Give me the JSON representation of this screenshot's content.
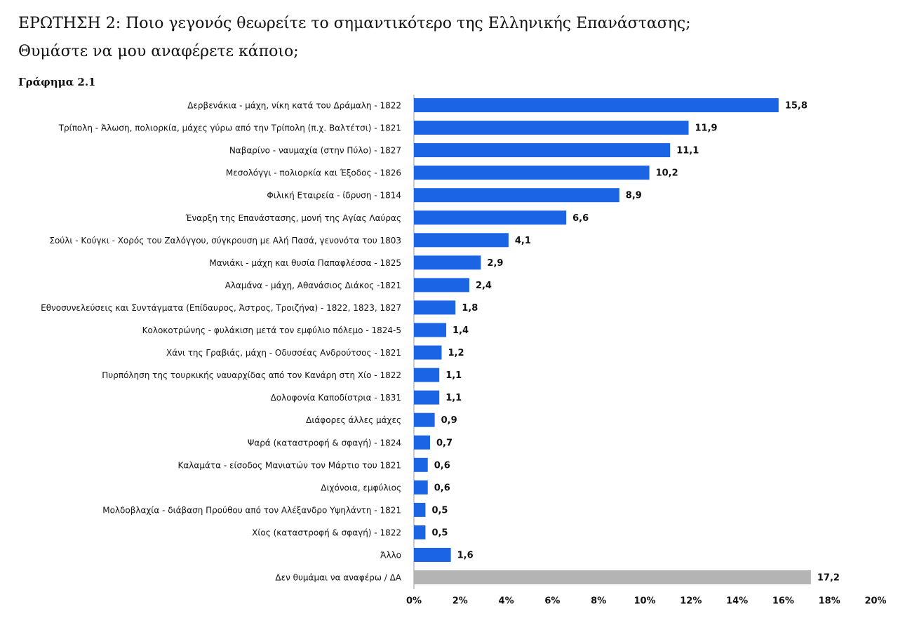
{
  "chart_data": {
    "type": "bar",
    "orientation": "horizontal",
    "title": [
      "ΕΡΩΤΗΣΗ 2: Ποιο γεγονός θεωρείτε το σημαντικότερο της Ελληνικής Επανάστασης;",
      "Θυμάστε να μου αναφέρετε κάποιο;"
    ],
    "subtitle": "Γράφημα 2.1",
    "categories": [
      "Δερβενάκια - μάχη, νίκη κατά του Δράμαλη - 1822",
      "Τρίπολη - Άλωση, πολιορκία, μάχες γύρω από την Τρίπολη (π.χ. Βαλτέτσι) - 1821",
      "Ναβαρίνο - ναυμαχία (στην Πύλο) - 1827",
      "Μεσολόγγι - πολιορκία και Έξοδος - 1826",
      "Φιλική Εταιρεία - ίδρυση - 1814",
      "Έναρξη της Επανάστασης, μονή της Αγίας Λαύρας",
      "Σούλι - Κούγκι - Χορός του Ζαλόγγου, σύγκρουση με Αλή Πασά, γενονότα του 1803",
      "Μανιάκι - μάχη και θυσία Παπαφλέσσα - 1825",
      "Αλαμάνα - μάχη, Αθανάσιος Διάκος -1821",
      "Εθνοσυνελεύσεις και Συντάγματα (Επίδαυρος, Άστρος, Τροιζήνα) - 1822, 1823, 1827",
      "Κολοκοτρώνης - φυλάκιση μετά τον εμφύλιο πόλεμο - 1824-5",
      "Χάνι της Γραβιάς, μάχη - Οδυσσέας Ανδρούτσος - 1821",
      "Πυρπόληση της τουρκικής ναυαρχίδας από τον Κανάρη στη Χίο - 1822",
      "Δολοφονία Καποδίστρια - 1831",
      "Διάφορες άλλες μάχες",
      "Ψαρά (καταστροφή & σφαγή) - 1824",
      "Καλαμάτα - είσοδος Μανιατών τον Μάρτιο του 1821",
      "Διχόνοια, εμφύλιος",
      "Μολδοβλαχία - διάβαση Προύθου από τον Αλέξανδρο Υψηλάντη - 1821",
      "Χίος (καταστροφή & σφαγή) - 1822",
      "Άλλο",
      "Δεν θυμάμαι να αναφέρω / ΔΑ"
    ],
    "values": [
      15.8,
      11.9,
      11.1,
      10.2,
      8.9,
      6.6,
      4.1,
      2.9,
      2.4,
      1.8,
      1.4,
      1.2,
      1.1,
      1.1,
      0.9,
      0.7,
      0.6,
      0.6,
      0.5,
      0.5,
      1.6,
      17.2
    ],
    "value_labels": [
      "15,8",
      "11,9",
      "11,1",
      "10,2",
      "8,9",
      "6,6",
      "4,1",
      "2,9",
      "2,4",
      "1,8",
      "1,4",
      "1,2",
      "1,1",
      "1,1",
      "0,9",
      "0,7",
      "0,6",
      "0,6",
      "0,5",
      "0,5",
      "1,6",
      "17,2"
    ],
    "colors": [
      "#1b64e3",
      "#1b64e3",
      "#1b64e3",
      "#1b64e3",
      "#1b64e3",
      "#1b64e3",
      "#1b64e3",
      "#1b64e3",
      "#1b64e3",
      "#1b64e3",
      "#1b64e3",
      "#1b64e3",
      "#1b64e3",
      "#1b64e3",
      "#1b64e3",
      "#1b64e3",
      "#1b64e3",
      "#1b64e3",
      "#1b64e3",
      "#1b64e3",
      "#1b64e3",
      "#b4b4b4"
    ],
    "xlim": [
      0,
      20
    ],
    "xticks": [
      {
        "value": 0,
        "label": "0%"
      },
      {
        "value": 2,
        "label": "2%"
      },
      {
        "value": 4,
        "label": "4%"
      },
      {
        "value": 6,
        "label": "6%"
      },
      {
        "value": 8,
        "label": "8%"
      },
      {
        "value": 10,
        "label": "10%"
      },
      {
        "value": 12,
        "label": "12%"
      },
      {
        "value": 14,
        "label": "14%"
      },
      {
        "value": 16,
        "label": "16%"
      },
      {
        "value": 18,
        "label": "18%"
      },
      {
        "value": 20,
        "label": "20%"
      }
    ]
  }
}
